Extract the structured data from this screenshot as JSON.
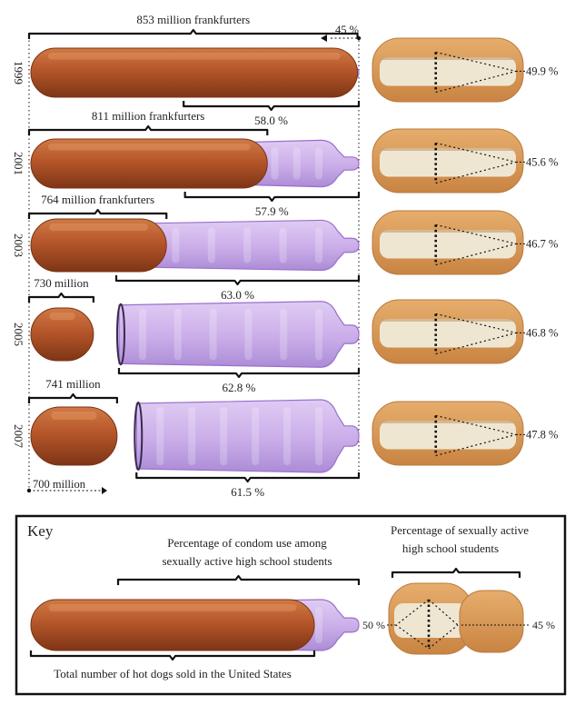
{
  "chart_data": {
    "type": "pictogram",
    "years": [
      "1999",
      "2001",
      "2003",
      "2005",
      "2007"
    ],
    "hot_dogs": {
      "values_millions": [
        853,
        811,
        764,
        730,
        741
      ],
      "labels": [
        "853 million frankfurters",
        "811 million frankfurters",
        "764 million frankfurters",
        "730 million",
        "741 million"
      ],
      "axis_start_millions": 700,
      "axis_start_label": "700 million"
    },
    "condom_use": {
      "values_percent": [
        58.0,
        57.9,
        63.0,
        62.8,
        61.5
      ],
      "labels": [
        "58.0 %",
        "57.9 %",
        "63.0 %",
        "62.8 %",
        "61.5 %"
      ],
      "scale_max_label": "45 %"
    },
    "sexually_active": {
      "values_percent": [
        49.9,
        45.6,
        46.7,
        46.8,
        47.8
      ],
      "labels": [
        "49.9 %",
        "45.6 %",
        "46.7 %",
        "46.8 %",
        "47.8 %"
      ]
    },
    "key": {
      "title": "Key",
      "condom_line1": "Percentage of condom use among",
      "condom_line2": "sexually active high school students",
      "hotdog_caption": "Total number of hot dogs sold in the United States",
      "bun_line1": "Percentage of sexually active",
      "bun_line2": "high school students",
      "bun_left_label": "50 %",
      "bun_right_label": "45 %"
    },
    "colors": {
      "sausage": "#b5562a",
      "sausage_dark": "#8e3f1c",
      "condom": "#c7a6e8",
      "condom_edge": "#9a6fcc",
      "bun_crust": "#d99a58",
      "bun_inner": "#efe6d2"
    }
  }
}
